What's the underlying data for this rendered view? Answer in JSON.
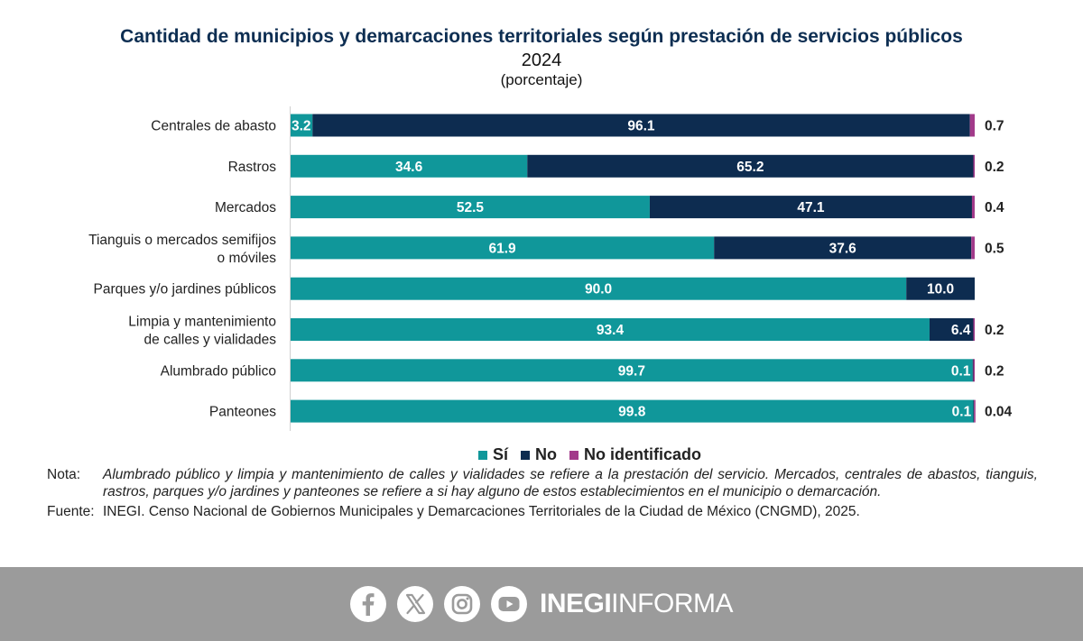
{
  "header": {
    "title": "Cantidad de municipios y demarcaciones territoriales según prestación de servicios públicos",
    "year": "2024",
    "unit": "(porcentaje)"
  },
  "chart_data": {
    "type": "bar",
    "orientation": "horizontal",
    "stacked": true,
    "categories": [
      "Centrales de abasto",
      "Rastros",
      "Mercados",
      "Tianguis o mercados semifijos o móviles",
      "Parques y/o jardines públicos",
      "Limpia y mantenimiento de calles y vialidades",
      "Alumbrado público",
      "Panteones"
    ],
    "category_lines": [
      [
        "Centrales de abasto"
      ],
      [
        "Rastros"
      ],
      [
        "Mercados"
      ],
      [
        "Tianguis o mercados semifijos",
        "o móviles"
      ],
      [
        "Parques y/o jardines públicos"
      ],
      [
        "Limpia y mantenimiento",
        "de calles y vialidades"
      ],
      [
        "Alumbrado público"
      ],
      [
        "Panteones"
      ]
    ],
    "series": [
      {
        "name": "Sí",
        "color": "#10979a",
        "values": [
          3.2,
          34.6,
          52.5,
          61.9,
          90.0,
          93.4,
          99.7,
          99.8
        ],
        "labels": [
          "3.2",
          "34.6",
          "52.5",
          "61.9",
          "90.0",
          "93.4",
          "99.7",
          "99.8"
        ]
      },
      {
        "name": "No",
        "color": "#0d2c50",
        "values": [
          96.1,
          65.2,
          47.1,
          37.6,
          10.0,
          6.4,
          0.1,
          0.1
        ],
        "labels": [
          "96.1",
          "65.2",
          "47.1",
          "37.6",
          "10.0",
          "6.4",
          "0.1",
          "0.1"
        ]
      },
      {
        "name": "No identificado",
        "color": "#a23a8a",
        "values": [
          0.7,
          0.2,
          0.4,
          0.5,
          0,
          0.2,
          0.2,
          0.04
        ],
        "labels": [
          "0.7",
          "0.2",
          "0.4",
          "0.5",
          "",
          "0.2",
          "0.2",
          "0.04"
        ]
      }
    ],
    "xlim": [
      0,
      100
    ],
    "grid": false,
    "legend_position": "bottom"
  },
  "notes": {
    "nota_label": "Nota:",
    "nota_text": "Alumbrado público y limpia y mantenimiento de calles y vialidades se refiere a la prestación del servicio. Mercados, centrales de abastos, tianguis, rastros, parques y/o jardines y panteones se refiere a si hay alguno de estos establecimientos en el municipio o demarcación.",
    "fuente_label": "Fuente:",
    "fuente_text": "INEGI. Censo Nacional de Gobiernos Municipales y Demarcaciones Territoriales de la Ciudad de México (CNGMD), 2025."
  },
  "footer": {
    "icons": [
      "facebook-icon",
      "x-icon",
      "instagram-icon",
      "youtube-icon"
    ],
    "brand_bold": "INEGI",
    "brand_light": "INFORMA"
  }
}
